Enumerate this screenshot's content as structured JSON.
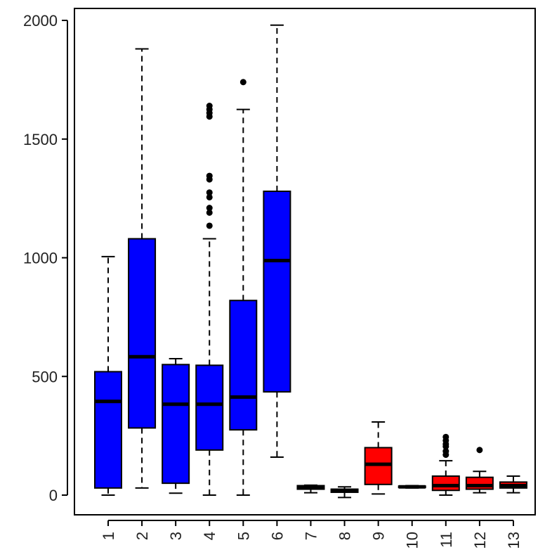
{
  "chart_data": {
    "type": "boxplot",
    "ylim": [
      -80,
      2050
    ],
    "yticks": [
      0,
      500,
      1000,
      1500,
      2000
    ],
    "categories": [
      "1",
      "2",
      "3",
      "4",
      "5",
      "6",
      "7",
      "8",
      "9",
      "10",
      "11",
      "12",
      "13"
    ],
    "boxes": [
      {
        "label": "1",
        "min": 0,
        "q1": 30,
        "median": 395,
        "q3": 520,
        "max": 1005,
        "outliers": [],
        "color": "#0000ff"
      },
      {
        "label": "2",
        "min": 30,
        "q1": 283,
        "median": 583,
        "q3": 1080,
        "max": 1880,
        "outliers": [],
        "color": "#0000ff"
      },
      {
        "label": "3",
        "min": 8,
        "q1": 50,
        "median": 383,
        "q3": 550,
        "max": 575,
        "outliers": [],
        "color": "#0000ff"
      },
      {
        "label": "4",
        "min": 0,
        "q1": 190,
        "median": 383,
        "q3": 547,
        "max": 1080,
        "outliers": [
          1135,
          1190,
          1210,
          1255,
          1275,
          1330,
          1345,
          1595,
          1610,
          1625,
          1640
        ],
        "color": "#0000ff"
      },
      {
        "label": "5",
        "min": 0,
        "q1": 275,
        "median": 413,
        "q3": 820,
        "max": 1625,
        "outliers": [
          1740
        ],
        "color": "#0000ff"
      },
      {
        "label": "6",
        "min": 160,
        "q1": 435,
        "median": 988,
        "q3": 1280,
        "max": 1980,
        "outliers": [],
        "color": "#0000ff"
      },
      {
        "label": "7",
        "min": 10,
        "q1": 25,
        "median": 33,
        "q3": 40,
        "max": 42,
        "outliers": [],
        "color": "#ff0000"
      },
      {
        "label": "8",
        "min": -10,
        "q1": 12,
        "median": 20,
        "q3": 25,
        "max": 35,
        "outliers": [],
        "color": "#ff0000"
      },
      {
        "label": "9",
        "min": 5,
        "q1": 45,
        "median": 130,
        "q3": 200,
        "max": 308,
        "outliers": [],
        "color": "#ff0000"
      },
      {
        "label": "10",
        "min": 30,
        "q1": 33,
        "median": 35,
        "q3": 38,
        "max": 40,
        "outliers": [],
        "color": "#ff0000"
      },
      {
        "label": "11",
        "min": 0,
        "q1": 20,
        "median": 40,
        "q3": 80,
        "max": 145,
        "outliers": [
          170,
          185,
          205,
          215,
          230,
          245
        ],
        "color": "#ff0000"
      },
      {
        "label": "12",
        "min": 10,
        "q1": 25,
        "median": 40,
        "q3": 75,
        "max": 100,
        "outliers": [
          190
        ],
        "color": "#ff0000"
      },
      {
        "label": "13",
        "min": 10,
        "q1": 30,
        "median": 40,
        "q3": 55,
        "max": 80,
        "outliers": [],
        "color": "#ff0000"
      }
    ]
  }
}
